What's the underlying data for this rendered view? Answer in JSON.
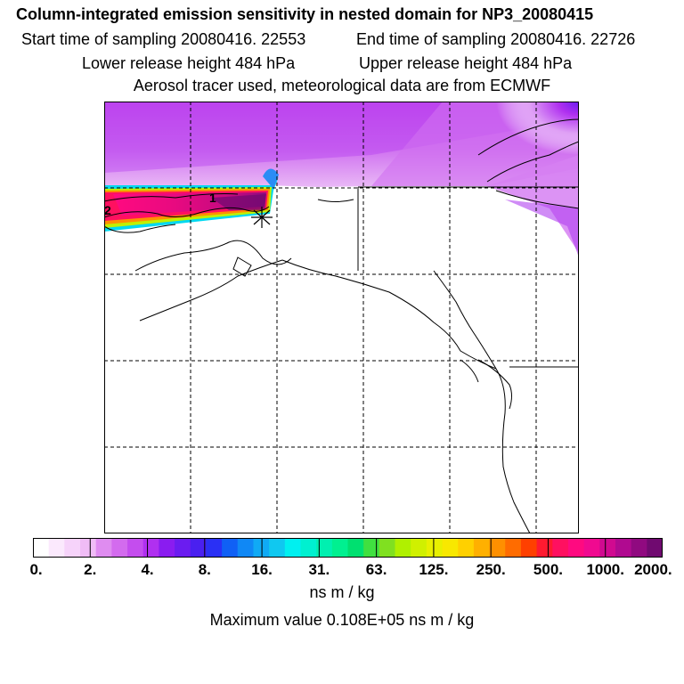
{
  "header": {
    "title": "Column-integrated emission sensitivity in nested domain for NP3_20080415",
    "start_time": "Start time of sampling 20080416. 22553",
    "end_time": "End time of sampling 20080416. 22726",
    "lower_release": "Lower release height  484 hPa",
    "upper_release": "Upper release height  484 hPa",
    "tracer_note": "Aerosol tracer used, meteorological data are from ECMWF"
  },
  "map": {
    "contour_labels": [
      "1",
      "2"
    ]
  },
  "colorbar": {
    "tick_labels": [
      "0.",
      "2.",
      "4.",
      "8.",
      "16.",
      "31.",
      "63.",
      "125.",
      "250.",
      "500.",
      "1000.",
      "2000."
    ],
    "units": "ns m / kg",
    "colors": [
      "#ffffff",
      "#fbe9fd",
      "#f6d3fa",
      "#f0bcf6",
      "#df8cf0",
      "#d36bee",
      "#c44dee",
      "#b030f0",
      "#8a1cf0",
      "#6b1cf0",
      "#4a20f0",
      "#2a30f5",
      "#1060f5",
      "#1088f5",
      "#10aaf5",
      "#10c8f0",
      "#00f0f0",
      "#00f0d0",
      "#00f0b0",
      "#00f090",
      "#00e070",
      "#40e040",
      "#80e020",
      "#b0f000",
      "#d0f000",
      "#e8f000",
      "#f8e800",
      "#ffd000",
      "#ffb000",
      "#ff9000",
      "#ff6c00",
      "#ff4000",
      "#ff1a30",
      "#ff1060",
      "#ff0a80",
      "#f00a90",
      "#d00a90",
      "#b00a90",
      "#900a80",
      "#700a70"
    ]
  },
  "max_value": "Maximum value  0.108E+05 ns m / kg"
}
